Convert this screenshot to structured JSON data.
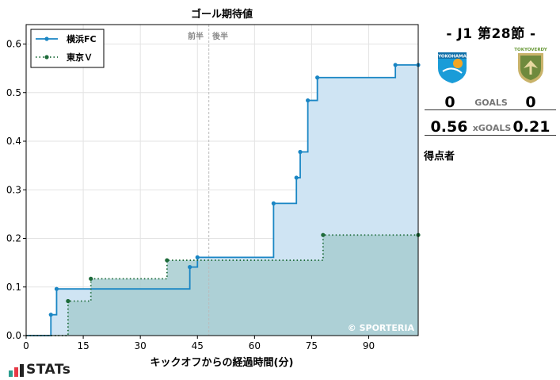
{
  "chart_data": {
    "type": "line",
    "step": "post",
    "title": "ゴール期待値",
    "xlabel": "キックオフからの経過時間(分)",
    "ylabel": "",
    "xlim": [
      0,
      103
    ],
    "ylim": [
      0,
      0.64
    ],
    "xticks": [
      "0",
      "15",
      "30",
      "45",
      "60",
      "75",
      "90"
    ],
    "yticks": [
      "0.0",
      "0.1",
      "0.2",
      "0.3",
      "0.4",
      "0.5",
      "0.6"
    ],
    "halftime": {
      "minute": 48,
      "first_half_label": "前半",
      "second_half_label": "後半"
    },
    "legend_position": "upper-left",
    "watermark": "© SPORTERIA",
    "series": [
      {
        "name": "横浜FC",
        "color": "#1a86c4",
        "fill": "#cfe4f3",
        "line_style": "solid",
        "x": [
          0,
          6.5,
          8,
          43,
          45,
          65,
          71,
          72,
          74,
          76.5,
          97,
          103
        ],
        "y": [
          0,
          0.043,
          0.096,
          0.141,
          0.161,
          0.272,
          0.325,
          0.378,
          0.484,
          0.531,
          0.557,
          0.557
        ]
      },
      {
        "name": "東京Ｖ",
        "color": "#1e6b3a",
        "fill": "#a7cdd0",
        "line_style": "dotted",
        "x": [
          0,
          11,
          17,
          37,
          78,
          103
        ],
        "y": [
          0,
          0.071,
          0.117,
          0.155,
          0.207,
          0.207
        ]
      }
    ]
  },
  "match": {
    "title": "- J1 第28節 -",
    "home_team": "横浜FC",
    "away_team": "東京Ｖ",
    "home_goals": "0",
    "away_goals": "0",
    "goals_label": "GOALS",
    "home_xg": "0.56",
    "away_xg": "0.21",
    "xgoals_label": "xGOALS",
    "scorers_label": "得点者",
    "home_crest": {
      "text": "YOKOHAMA",
      "color": "#1a9cd8",
      "accent": "#f5a623"
    },
    "away_crest": {
      "text": "TOKYO VERDY",
      "color": "#7b8a4e",
      "accent": "#c9a94a"
    }
  },
  "brand": {
    "name": "STATs",
    "bar_colors": [
      "#2a9d8f",
      "#e63946",
      "#222222"
    ]
  }
}
